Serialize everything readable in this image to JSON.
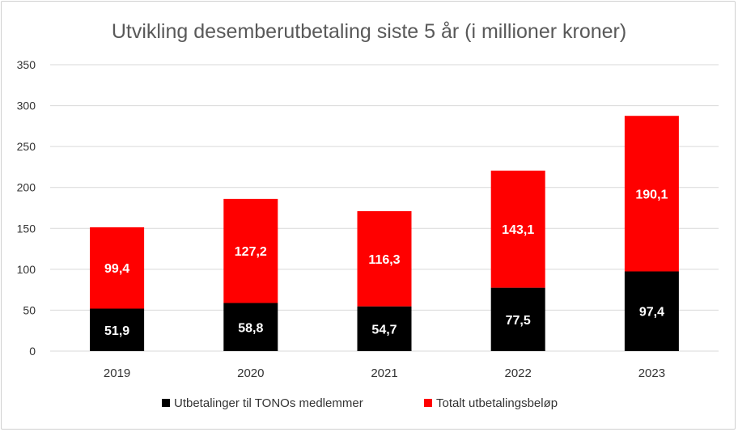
{
  "chart_data": {
    "type": "bar",
    "stacked": true,
    "title": "Utvikling desemberutbetaling siste 5 år (i millioner kroner)",
    "categories": [
      "2019",
      "2020",
      "2021",
      "2022",
      "2023"
    ],
    "series": [
      {
        "name": "Utbetalinger til TONOs medlemmer",
        "values": [
          51.9,
          58.8,
          54.7,
          77.5,
          97.4
        ],
        "labels": [
          "51,9",
          "58,8",
          "54,7",
          "77,5",
          "97,4"
        ],
        "color": "#000000"
      },
      {
        "name": "Totalt utbetalingsbeløp",
        "values": [
          99.4,
          127.2,
          116.3,
          143.1,
          190.1
        ],
        "labels": [
          "99,4",
          "127,2",
          "116,3",
          "143,1",
          "190,1"
        ],
        "color": "#ff0000"
      }
    ],
    "ylim": [
      0,
      350
    ],
    "yticks": [
      0,
      50,
      100,
      150,
      200,
      250,
      300,
      350
    ],
    "ytick_labels": [
      "0",
      "50",
      "100",
      "150",
      "200",
      "250",
      "300",
      "350"
    ],
    "grid": true,
    "legend_position": "bottom"
  }
}
